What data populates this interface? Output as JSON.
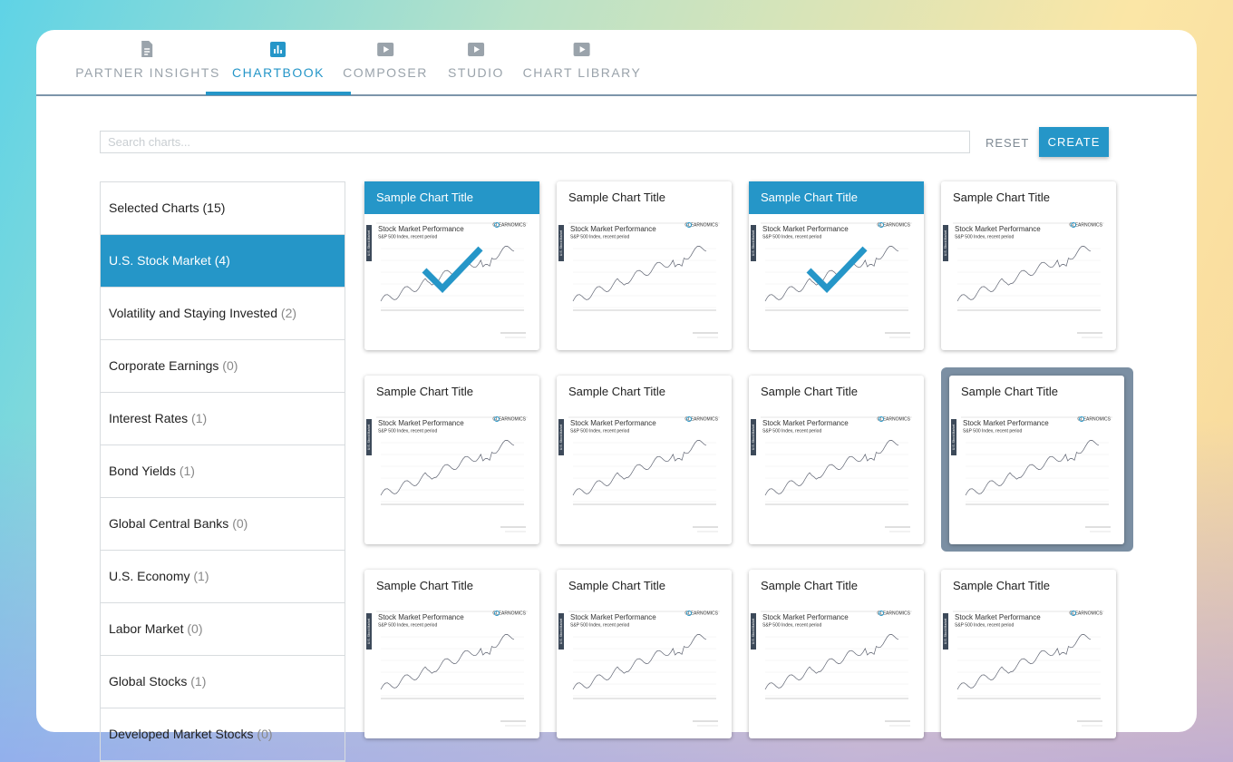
{
  "tabs": [
    "PARTNER INSIGHTS",
    "CHARTBOOK",
    "COMPOSER",
    "STUDIO",
    "CHART LIBRARY"
  ],
  "active_tab": 1,
  "search": {
    "placeholder": "Search charts..."
  },
  "buttons": {
    "reset": "RESET",
    "create": "CREATE"
  },
  "sidebar": {
    "active": 1,
    "items": [
      {
        "name": "Selected Charts (15)",
        "count": ""
      },
      {
        "name": "U.S. Stock Market",
        "count": "(4)"
      },
      {
        "name": "Volatility and Staying Invested",
        "count": "(2)"
      },
      {
        "name": "Corporate Earnings",
        "count": "(0)"
      },
      {
        "name": "Interest Rates",
        "count": "(1)"
      },
      {
        "name": "Bond Yields",
        "count": "(1)"
      },
      {
        "name": "Global Central Banks",
        "count": "(0)"
      },
      {
        "name": "U.S. Economy",
        "count": "(1)"
      },
      {
        "name": "Labor Market",
        "count": "(0)"
      },
      {
        "name": "Global Stocks",
        "count": "(1)"
      },
      {
        "name": "Developed Market Stocks",
        "count": "(0)"
      }
    ]
  },
  "thumbnail": {
    "chart_title": "Stock Market Performance",
    "chart_subtitle": "S&P 500 Index, recent period",
    "side_label": "U.S. Stock Market",
    "brand": "CLEARNOMICS"
  },
  "cards": [
    {
      "title": "Sample Chart Title",
      "selected": true,
      "hovered": false
    },
    {
      "title": "Sample Chart Title",
      "selected": false,
      "hovered": false
    },
    {
      "title": "Sample Chart Title",
      "selected": true,
      "hovered": false
    },
    {
      "title": "Sample Chart Title",
      "selected": false,
      "hovered": false
    },
    {
      "title": "Sample Chart Title",
      "selected": false,
      "hovered": false
    },
    {
      "title": "Sample Chart Title",
      "selected": false,
      "hovered": false
    },
    {
      "title": "Sample Chart Title",
      "selected": false,
      "hovered": false
    },
    {
      "title": "Sample Chart Title",
      "selected": false,
      "hovered": true
    },
    {
      "title": "Sample Chart Title",
      "selected": false,
      "hovered": false
    },
    {
      "title": "Sample Chart Title",
      "selected": false,
      "hovered": false
    },
    {
      "title": "Sample Chart Title",
      "selected": false,
      "hovered": false
    },
    {
      "title": "Sample Chart Title",
      "selected": false,
      "hovered": false
    }
  ]
}
